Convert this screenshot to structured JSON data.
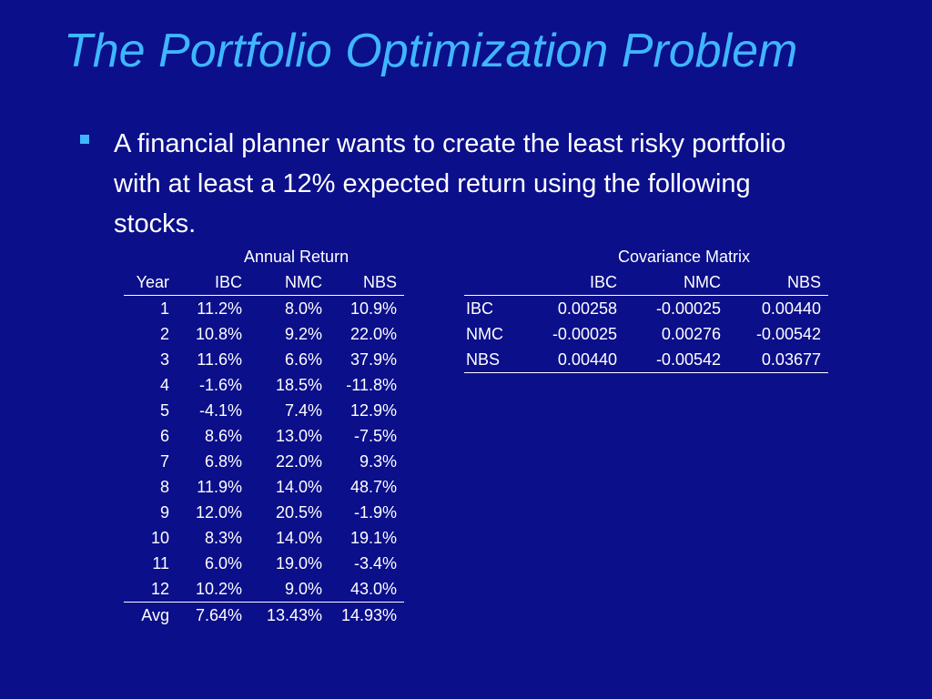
{
  "slide": {
    "title": "The Portfolio Optimization Problem",
    "bullet_text": "A financial planner wants to create the least risky portfolio with at least a 12% expected return using the following stocks."
  },
  "returns_table": {
    "label": "Annual Return",
    "headers": [
      "Year",
      "IBC",
      "NMC",
      "NBS"
    ],
    "rows": [
      [
        "1",
        "11.2%",
        "8.0%",
        "10.9%"
      ],
      [
        "2",
        "10.8%",
        "9.2%",
        "22.0%"
      ],
      [
        "3",
        "11.6%",
        "6.6%",
        "37.9%"
      ],
      [
        "4",
        "-1.6%",
        "18.5%",
        "-11.8%"
      ],
      [
        "5",
        "-4.1%",
        "7.4%",
        "12.9%"
      ],
      [
        "6",
        "8.6%",
        "13.0%",
        "-7.5%"
      ],
      [
        "7",
        "6.8%",
        "22.0%",
        "9.3%"
      ],
      [
        "8",
        "11.9%",
        "14.0%",
        "48.7%"
      ],
      [
        "9",
        "12.0%",
        "20.5%",
        "-1.9%"
      ],
      [
        "10",
        "8.3%",
        "14.0%",
        "19.1%"
      ],
      [
        "11",
        "6.0%",
        "19.0%",
        "-3.4%"
      ],
      [
        "12",
        "10.2%",
        "9.0%",
        "43.0%"
      ]
    ],
    "footer": [
      "Avg",
      "7.64%",
      "13.43%",
      "14.93%"
    ]
  },
  "covariance_table": {
    "label": "Covariance Matrix",
    "headers": [
      "",
      "IBC",
      "NMC",
      "NBS"
    ],
    "rows": [
      [
        "IBC",
        "0.00258",
        "-0.00025",
        "0.00440"
      ],
      [
        "NMC",
        "-0.00025",
        "0.00276",
        "-0.00542"
      ],
      [
        "NBS",
        "0.00440",
        "-0.00542",
        "0.03677"
      ]
    ]
  },
  "colors": {
    "background": "#0b0f8a",
    "title": "#3fb6ff",
    "bullet": "#3fb6ff",
    "text": "#ffffff"
  }
}
